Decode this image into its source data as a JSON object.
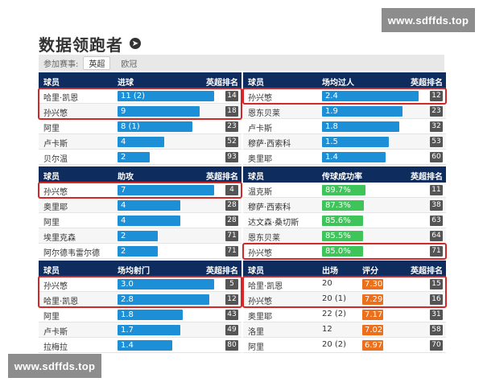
{
  "watermark": "www.sdffds.top",
  "title": "数据领跑者",
  "filter": {
    "label": "参加赛事:",
    "options": [
      "英超",
      "欧冠"
    ],
    "active": 0
  },
  "colors": {
    "header": "#0f2c5e",
    "blue_bar": "#1c8fd6",
    "green_bar": "#3fc45a",
    "orange_bar": "#ec6f1b",
    "rank": "#555555",
    "highlight": "#d42828"
  },
  "panels": [
    {
      "id": "goals",
      "headers": [
        "球员",
        "进球",
        "英超排名"
      ],
      "color": "blue",
      "max": 11,
      "rows": [
        {
          "name": "哈里·凯恩",
          "label": "11 (2)",
          "value": 11,
          "rank": "14"
        },
        {
          "name": "孙兴慜",
          "label": "9",
          "value": 9,
          "rank": "18"
        },
        {
          "name": "阿里",
          "label": "8 (1)",
          "value": 8,
          "rank": "23"
        },
        {
          "name": "卢卡斯",
          "label": "4",
          "value": 4,
          "rank": "52"
        },
        {
          "name": "贝尔温",
          "label": "2",
          "value": 2,
          "rank": "93"
        }
      ],
      "highlight": [
        0,
        1
      ]
    },
    {
      "id": "dribbles",
      "headers": [
        "球员",
        "场均过人",
        "英超排名"
      ],
      "color": "blue",
      "max": 2.4,
      "rows": [
        {
          "name": "孙兴慜",
          "label": "2.4",
          "value": 2.4,
          "rank": "12"
        },
        {
          "name": "恩东贝莱",
          "label": "1.9",
          "value": 1.9,
          "rank": "23"
        },
        {
          "name": "卢卡斯",
          "label": "1.8",
          "value": 1.8,
          "rank": "32"
        },
        {
          "name": "穆萨·西索科",
          "label": "1.5",
          "value": 1.5,
          "rank": "53"
        },
        {
          "name": "奥里耶",
          "label": "1.4",
          "value": 1.4,
          "rank": "60"
        }
      ],
      "highlight": [
        0
      ]
    },
    {
      "id": "assists",
      "headers": [
        "球员",
        "助攻",
        "英超排名"
      ],
      "color": "blue",
      "max": 7,
      "rows": [
        {
          "name": "孙兴慜",
          "label": "7",
          "value": 7,
          "rank": "4"
        },
        {
          "name": "奥里耶",
          "label": "4",
          "value": 4,
          "rank": "28"
        },
        {
          "name": "阿里",
          "label": "4",
          "value": 4,
          "rank": "28"
        },
        {
          "name": "埃里克森",
          "label": "2",
          "value": 2,
          "rank": "71"
        },
        {
          "name": "阿尔德韦雷尔德",
          "label": "2",
          "value": 2,
          "rank": "71"
        }
      ],
      "highlight": [
        0
      ]
    },
    {
      "id": "passing",
      "headers": [
        "球员",
        "传球成功率",
        "英超排名"
      ],
      "color": "green",
      "max": 100,
      "rows": [
        {
          "name": "温克斯",
          "label": "89.7%",
          "value": 89.7,
          "rank": "11"
        },
        {
          "name": "穆萨·西索科",
          "label": "87.3%",
          "value": 87.3,
          "rank": "38"
        },
        {
          "name": "达文森·桑切斯",
          "label": "85.6%",
          "value": 85.6,
          "rank": "63"
        },
        {
          "name": "恩东贝莱",
          "label": "85.5%",
          "value": 85.5,
          "rank": "64"
        },
        {
          "name": "孙兴慜",
          "label": "85.0%",
          "value": 85.0,
          "rank": "71"
        }
      ],
      "highlight": [
        4
      ]
    },
    {
      "id": "shots",
      "headers": [
        "球员",
        "场均射门",
        "英超排名"
      ],
      "color": "blue",
      "max": 3.0,
      "rows": [
        {
          "name": "孙兴慜",
          "label": "3.0",
          "value": 3.0,
          "rank": "5"
        },
        {
          "name": "哈里·凯恩",
          "label": "2.8",
          "value": 2.8,
          "rank": "12"
        },
        {
          "name": "阿里",
          "label": "1.8",
          "value": 1.8,
          "rank": "43"
        },
        {
          "name": "卢卡斯",
          "label": "1.7",
          "value": 1.7,
          "rank": "49"
        },
        {
          "name": "拉梅拉",
          "label": "1.4",
          "value": 1.4,
          "rank": "80"
        }
      ],
      "highlight": [
        0,
        1
      ]
    },
    {
      "id": "rating",
      "headers": [
        "球员",
        "出场",
        "评分",
        "英超排名"
      ],
      "color": "orange",
      "rows": [
        {
          "name": "哈里·凯恩",
          "apps": "20",
          "label": "7.30",
          "rank": "15"
        },
        {
          "name": "孙兴慜",
          "apps": "20 (1)",
          "label": "7.29",
          "rank": "16"
        },
        {
          "name": "奥里耶",
          "apps": "22 (2)",
          "label": "7.17",
          "rank": "31"
        },
        {
          "name": "洛里",
          "apps": "12",
          "label": "7.02",
          "rank": "58"
        },
        {
          "name": "阿里",
          "apps": "20 (2)",
          "label": "6.97",
          "rank": "70"
        }
      ],
      "highlight": [
        0,
        1
      ]
    }
  ]
}
